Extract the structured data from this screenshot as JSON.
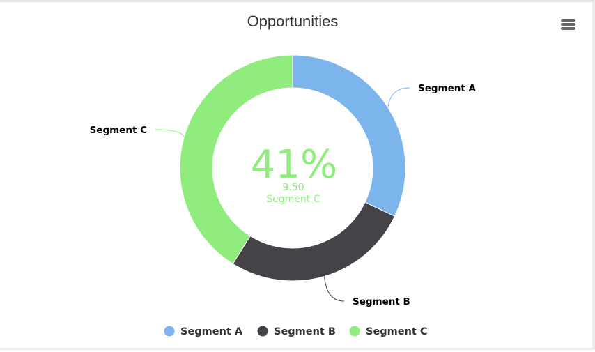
{
  "chart_data": {
    "type": "pie",
    "variant": "donut",
    "title": "Opportunities",
    "slices": [
      {
        "name": "Segment A",
        "value": 7.4,
        "color": "#7cb5ec"
      },
      {
        "name": "Segment B",
        "value": 6.2,
        "color": "#434348"
      },
      {
        "name": "Segment C",
        "value": 9.5,
        "color": "#90ed7d"
      }
    ],
    "center": {
      "percent_text": "41%",
      "value_text": "9.50",
      "label": "Segment C",
      "color": "#90ed7d"
    },
    "legend": {
      "placement": "bottom-center",
      "items": [
        "Segment A",
        "Segment B",
        "Segment C"
      ]
    }
  },
  "menu": {
    "icon": "hamburger-menu-icon"
  }
}
